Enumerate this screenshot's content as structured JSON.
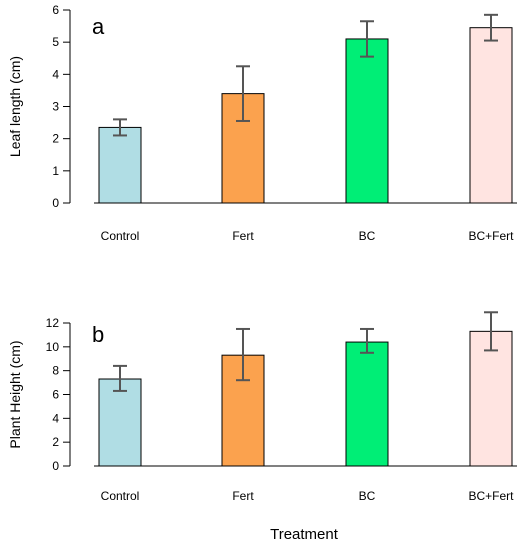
{
  "chart_data": [
    {
      "type": "bar",
      "panel_label": "a",
      "title": "",
      "xlabel": "",
      "ylabel": "Leaf length (cm)",
      "ylim": [
        0,
        6
      ],
      "yticks": [
        0,
        1,
        2,
        3,
        4,
        5,
        6
      ],
      "grid": false,
      "categories": [
        "Control",
        "Fert",
        "BC",
        "BC+Fert"
      ],
      "values": [
        2.35,
        3.4,
        5.1,
        5.45
      ],
      "error_low": [
        2.1,
        2.55,
        4.55,
        5.05
      ],
      "error_high": [
        2.6,
        4.25,
        5.65,
        5.85
      ],
      "colors": [
        "#b0dde4",
        "#fba24e",
        "#00ee76",
        "#ffe4e1"
      ]
    },
    {
      "type": "bar",
      "panel_label": "b",
      "title": "",
      "xlabel": "Treatment",
      "ylabel": "Plant Height (cm)",
      "ylim": [
        0,
        12
      ],
      "yticks": [
        0,
        2,
        4,
        6,
        8,
        10,
        12
      ],
      "grid": false,
      "categories": [
        "Control",
        "Fert",
        "BC",
        "BC+Fert"
      ],
      "values": [
        7.3,
        9.3,
        10.4,
        11.3
      ],
      "error_low": [
        6.3,
        7.2,
        9.5,
        9.7
      ],
      "error_high": [
        8.4,
        11.5,
        11.5,
        12.9
      ],
      "colors": [
        "#b0dde4",
        "#fba24e",
        "#00ee76",
        "#ffe4e1"
      ]
    }
  ],
  "colors": {
    "bar_outline": "#000000",
    "error_bar": "#555555",
    "axis": "#000000"
  }
}
